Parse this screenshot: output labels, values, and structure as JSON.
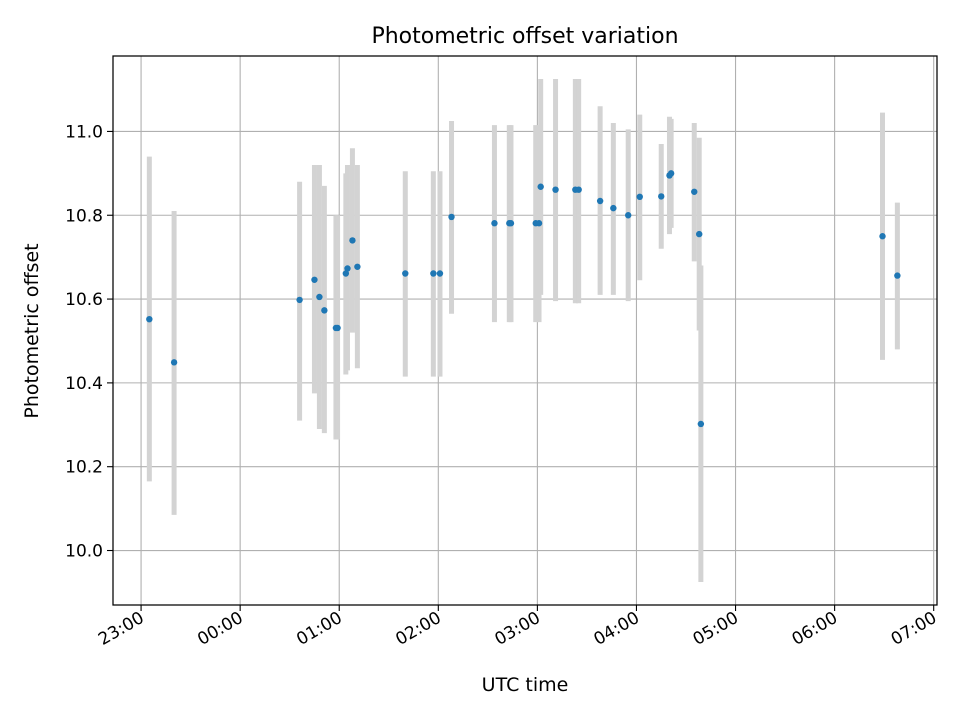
{
  "chart_data": {
    "type": "scatter",
    "title": "Photometric offset variation",
    "xlabel": "UTC time",
    "ylabel": "Photometric offset",
    "x_unit": "UTC time (HH:MM), spanning 23:00 to 07:00 the next day",
    "xlim": [
      "22:43",
      "07:02"
    ],
    "ylim": [
      9.87,
      11.18
    ],
    "x_ticks": [
      "23:00",
      "00:00",
      "01:00",
      "02:00",
      "03:00",
      "04:00",
      "05:00",
      "06:00",
      "07:00"
    ],
    "y_ticks": [
      "10.0",
      "10.2",
      "10.4",
      "10.6",
      "10.8",
      "11.0"
    ],
    "grid": true,
    "colors": {
      "point": "#1f77b4",
      "errorbar": "#d3d3d3",
      "grid": "#b0b0b0"
    },
    "series": [
      {
        "points": [
          {
            "t": "23:05",
            "y": 10.552,
            "lo": 10.165,
            "hi": 10.94
          },
          {
            "t": "23:20",
            "y": 10.449,
            "lo": 10.085,
            "hi": 10.81
          },
          {
            "t": "00:36",
            "y": 10.598,
            "lo": 10.31,
            "hi": 10.88
          },
          {
            "t": "00:45",
            "y": 10.646,
            "lo": 10.375,
            "hi": 10.92
          },
          {
            "t": "00:48",
            "y": 10.605,
            "lo": 10.29,
            "hi": 10.92
          },
          {
            "t": "00:51",
            "y": 10.573,
            "lo": 10.28,
            "hi": 10.87
          },
          {
            "t": "00:58",
            "y": 10.531,
            "lo": 10.265,
            "hi": 10.8
          },
          {
            "t": "00:59",
            "y": 10.531,
            "lo": 10.265,
            "hi": 10.8
          },
          {
            "t": "01:04",
            "y": 10.661,
            "lo": 10.42,
            "hi": 10.9
          },
          {
            "t": "01:05",
            "y": 10.673,
            "lo": 10.43,
            "hi": 10.92
          },
          {
            "t": "01:08",
            "y": 10.74,
            "lo": 10.52,
            "hi": 10.96
          },
          {
            "t": "01:11",
            "y": 10.677,
            "lo": 10.435,
            "hi": 10.92
          },
          {
            "t": "01:40",
            "y": 10.661,
            "lo": 10.415,
            "hi": 10.905
          },
          {
            "t": "01:57",
            "y": 10.661,
            "lo": 10.415,
            "hi": 10.905
          },
          {
            "t": "02:01",
            "y": 10.661,
            "lo": 10.415,
            "hi": 10.905
          },
          {
            "t": "02:08",
            "y": 10.796,
            "lo": 10.565,
            "hi": 11.025
          },
          {
            "t": "02:34",
            "y": 10.781,
            "lo": 10.545,
            "hi": 11.015
          },
          {
            "t": "02:43",
            "y": 10.781,
            "lo": 10.545,
            "hi": 11.015
          },
          {
            "t": "02:44",
            "y": 10.781,
            "lo": 10.545,
            "hi": 11.015
          },
          {
            "t": "02:59",
            "y": 10.781,
            "lo": 10.545,
            "hi": 11.015
          },
          {
            "t": "03:01",
            "y": 10.781,
            "lo": 10.545,
            "hi": 11.015
          },
          {
            "t": "03:02",
            "y": 10.868,
            "lo": 10.61,
            "hi": 11.125
          },
          {
            "t": "03:11",
            "y": 10.861,
            "lo": 10.595,
            "hi": 11.125
          },
          {
            "t": "03:23",
            "y": 10.861,
            "lo": 10.59,
            "hi": 11.125
          },
          {
            "t": "03:25",
            "y": 10.861,
            "lo": 10.59,
            "hi": 11.125
          },
          {
            "t": "03:38",
            "y": 10.834,
            "lo": 10.61,
            "hi": 11.06
          },
          {
            "t": "03:46",
            "y": 10.817,
            "lo": 10.61,
            "hi": 11.02
          },
          {
            "t": "03:55",
            "y": 10.8,
            "lo": 10.595,
            "hi": 11.005
          },
          {
            "t": "04:02",
            "y": 10.844,
            "lo": 10.645,
            "hi": 11.04
          },
          {
            "t": "04:15",
            "y": 10.845,
            "lo": 10.72,
            "hi": 10.97
          },
          {
            "t": "04:20",
            "y": 10.895,
            "lo": 10.755,
            "hi": 11.035
          },
          {
            "t": "04:21",
            "y": 10.9,
            "lo": 10.77,
            "hi": 11.03
          },
          {
            "t": "04:35",
            "y": 10.856,
            "lo": 10.69,
            "hi": 11.02
          },
          {
            "t": "04:38",
            "y": 10.755,
            "lo": 10.525,
            "hi": 10.985
          },
          {
            "t": "04:39",
            "y": 10.302,
            "lo": 9.925,
            "hi": 10.68
          },
          {
            "t": "06:29",
            "y": 10.75,
            "lo": 10.455,
            "hi": 11.045
          },
          {
            "t": "06:38",
            "y": 10.656,
            "lo": 10.48,
            "hi": 10.83
          }
        ]
      }
    ]
  }
}
